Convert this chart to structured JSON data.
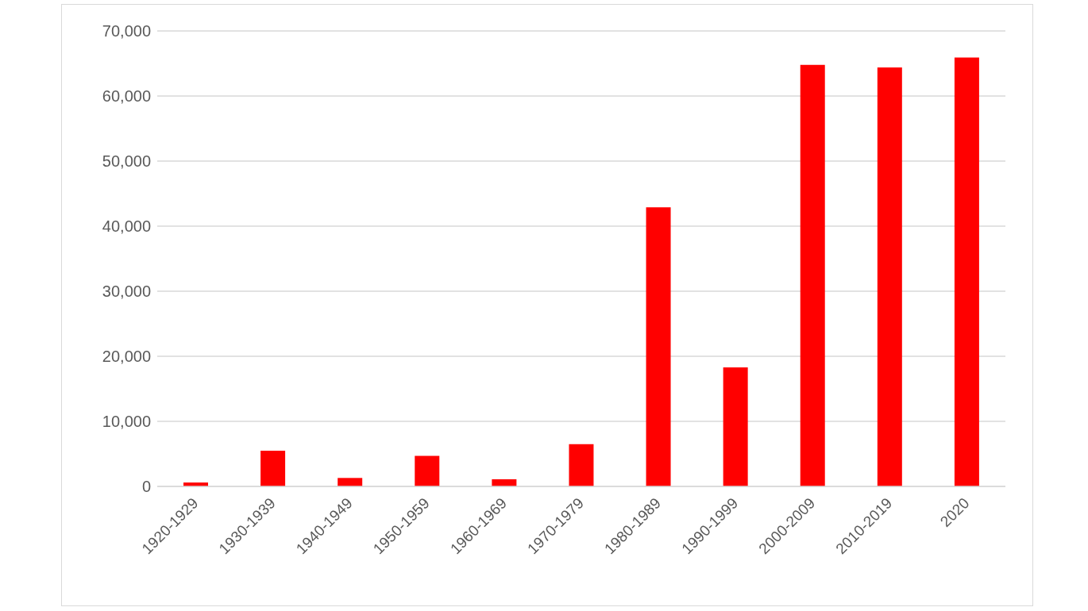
{
  "chart_data": {
    "type": "bar",
    "categories": [
      "1920-1929",
      "1930-1939",
      "1940-1949",
      "1950-1959",
      "1960-1969",
      "1970-1979",
      "1980-1989",
      "1990-1999",
      "2000-2009",
      "2010-2019",
      "2020"
    ],
    "values": [
      600,
      5500,
      1300,
      4700,
      1100,
      6500,
      42900,
      18300,
      64800,
      64400,
      65900
    ],
    "color": "#ff0000",
    "ylim": [
      0,
      70000
    ],
    "yticks": [
      {
        "value": 0,
        "label": "0"
      },
      {
        "value": 10000,
        "label": "10,000"
      },
      {
        "value": 20000,
        "label": "20,000"
      },
      {
        "value": 30000,
        "label": "30,000"
      },
      {
        "value": 40000,
        "label": "40,000"
      },
      {
        "value": 50000,
        "label": "50,000"
      },
      {
        "value": 60000,
        "label": "60,000"
      },
      {
        "value": 70000,
        "label": "70,000"
      }
    ],
    "grid": "y"
  }
}
